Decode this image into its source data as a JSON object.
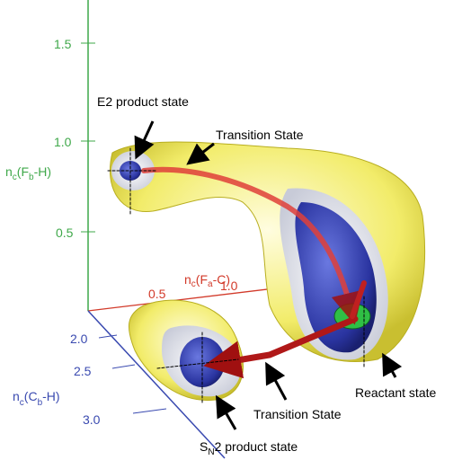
{
  "axes": {
    "z": {
      "label": [
        "n",
        "c",
        "(F",
        "b",
        "-H)"
      ],
      "ticks": [
        "1.5",
        "1.0",
        "0.5"
      ]
    },
    "x": {
      "label": [
        "n",
        "c",
        "(F",
        "a",
        "-C)"
      ],
      "ticks": [
        "0.5",
        "1.0"
      ]
    },
    "y": {
      "label": [
        "n",
        "c",
        "(C",
        "b",
        "-H)"
      ],
      "ticks": [
        "2.0",
        "2.5",
        "3.0"
      ]
    }
  },
  "annotations": [
    "E2 product state",
    "Transition State",
    "Reactant state",
    "Transition State"
  ],
  "sn2_label": [
    "S",
    "N",
    "2 product state"
  ]
}
